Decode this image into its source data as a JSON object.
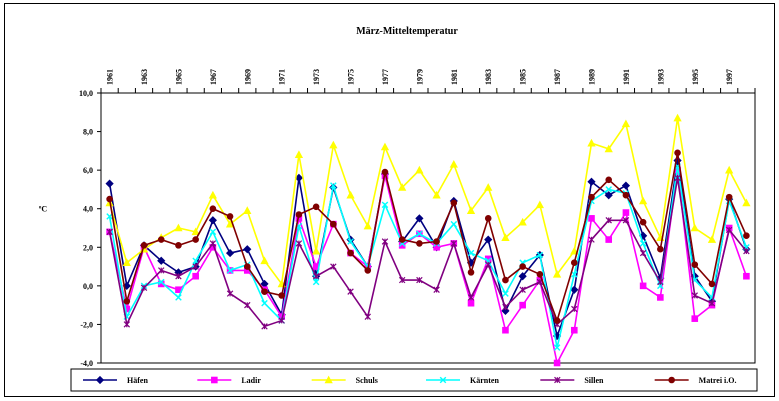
{
  "chart_data": {
    "type": "line",
    "title": "März-Mitteltemperatur",
    "ylabel": "ºC",
    "xlabel": "",
    "ylim": [
      -4.0,
      10.0
    ],
    "ytick_step": 2.0,
    "ytick_labels": [
      "10,0",
      "8,0",
      "6,0",
      "4,0",
      "2,0",
      "0,0",
      "-2,0",
      "-4,0"
    ],
    "yticks": [
      10,
      8,
      6,
      4,
      2,
      0,
      -2,
      -4
    ],
    "x_tick_labels": [
      "1961",
      "1963",
      "1965",
      "1967",
      "1969",
      "1971",
      "1973",
      "1975",
      "1977",
      "1979",
      "1981",
      "1983",
      "1985",
      "1987",
      "1989",
      "1991",
      "1993",
      "1995",
      "1997"
    ],
    "x": [
      1961,
      1962,
      1963,
      1964,
      1965,
      1966,
      1967,
      1968,
      1969,
      1970,
      1971,
      1972,
      1973,
      1974,
      1975,
      1976,
      1977,
      1978,
      1979,
      1980,
      1981,
      1982,
      1983,
      1984,
      1985,
      1986,
      1987,
      1988,
      1989,
      1990,
      1991,
      1992,
      1993,
      1994,
      1995,
      1996,
      1997,
      1998
    ],
    "grid": false,
    "legend_position": "bottom",
    "series": [
      {
        "name": "Häfen",
        "color": "#000080",
        "marker": "diamond",
        "values": [
          5.3,
          0.0,
          2.1,
          1.3,
          0.7,
          1.0,
          3.4,
          1.7,
          1.9,
          0.1,
          -1.5,
          5.6,
          0.5,
          5.1,
          2.4,
          1.0,
          5.8,
          2.3,
          3.5,
          2.0,
          4.4,
          1.2,
          2.4,
          -1.3,
          0.5,
          1.6,
          -2.6,
          -0.2,
          5.4,
          4.7,
          5.2,
          2.6,
          0.4,
          6.5,
          0.5,
          -0.8,
          4.5,
          1.9
        ]
      },
      {
        "name": "Ladir",
        "color": "#ff00ff",
        "marker": "square",
        "values": [
          2.8,
          -1.2,
          2.0,
          0.1,
          -0.2,
          0.5,
          2.0,
          0.8,
          0.8,
          -0.2,
          -1.6,
          3.5,
          1.0,
          3.2,
          1.7,
          1.0,
          5.7,
          2.1,
          2.7,
          2.0,
          2.2,
          -0.9,
          1.4,
          -2.3,
          -1.0,
          0.3,
          -4.0,
          -2.3,
          3.5,
          2.4,
          3.8,
          0.0,
          -0.6,
          6.0,
          -1.7,
          -1.0,
          3.0,
          0.5
        ]
      },
      {
        "name": "Schuls",
        "color": "#ffff00",
        "marker": "triangle",
        "values": [
          4.3,
          1.2,
          1.9,
          2.5,
          3.0,
          2.8,
          4.7,
          3.2,
          3.9,
          1.3,
          0.1,
          6.8,
          1.8,
          7.3,
          4.7,
          3.1,
          7.2,
          5.1,
          6.0,
          4.7,
          6.3,
          3.9,
          5.1,
          2.5,
          3.3,
          4.2,
          0.6,
          1.8,
          7.4,
          7.1,
          8.4,
          4.4,
          2.5,
          8.7,
          3.0,
          2.4,
          6.0,
          4.3
        ]
      },
      {
        "name": "Kärnten",
        "color": "#00ffff",
        "marker": "x",
        "values": [
          3.6,
          -1.6,
          0.0,
          0.2,
          -0.6,
          1.3,
          2.8,
          0.8,
          1.1,
          -0.9,
          -1.8,
          3.1,
          0.2,
          5.2,
          2.3,
          1.0,
          4.2,
          2.2,
          2.7,
          2.2,
          3.2,
          1.7,
          1.3,
          -0.4,
          1.2,
          1.6,
          -3.2,
          0.6,
          4.4,
          5.0,
          4.8,
          2.2,
          0.0,
          6.2,
          0.3,
          -0.6,
          4.4,
          2.0
        ]
      },
      {
        "name": "Sillen",
        "color": "#800080",
        "marker": "star",
        "values": [
          2.8,
          -2.0,
          -0.1,
          0.8,
          0.5,
          1.0,
          2.2,
          -0.4,
          -1.0,
          -2.1,
          -1.8,
          2.2,
          0.5,
          1.0,
          -0.3,
          -1.6,
          2.3,
          0.3,
          0.3,
          -0.2,
          2.2,
          -0.6,
          1.1,
          -1.1,
          -0.2,
          0.2,
          -2.0,
          -1.2,
          2.4,
          3.4,
          3.4,
          1.7,
          0.2,
          5.6,
          -0.5,
          -0.9,
          2.9,
          1.8
        ]
      },
      {
        "name": "Matrei i.O.",
        "color": "#800000",
        "marker": "circle",
        "values": [
          4.5,
          -0.8,
          2.1,
          2.4,
          2.1,
          2.4,
          4.0,
          3.6,
          1.0,
          -0.3,
          -0.5,
          3.7,
          4.1,
          3.2,
          1.7,
          0.8,
          5.9,
          2.4,
          2.2,
          2.3,
          4.3,
          0.7,
          3.5,
          0.3,
          1.0,
          0.6,
          -1.8,
          1.2,
          4.6,
          5.5,
          4.7,
          3.3,
          1.9,
          6.9,
          1.1,
          0.1,
          4.6,
          2.6
        ]
      }
    ]
  }
}
